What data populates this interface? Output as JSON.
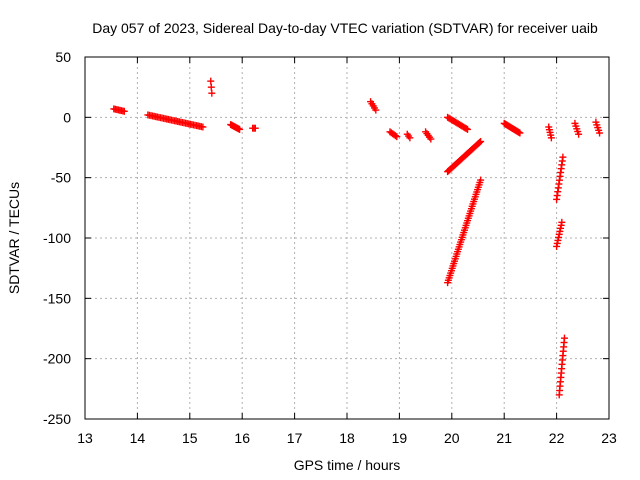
{
  "chart_data": {
    "type": "scatter",
    "title": "Day 057 of 2023, Sidereal Day-to-day VTEC variation (SDTVAR) for receiver uaib",
    "xlabel": "GPS time / hours",
    "ylabel": "SDTVAR / TECUs",
    "xlim": [
      13,
      23
    ],
    "ylim": [
      -250,
      50
    ],
    "grid": true,
    "marker": "+",
    "marker_color": "#ff0000",
    "x_ticks": [
      13,
      14,
      15,
      16,
      17,
      18,
      19,
      20,
      21,
      22,
      23
    ],
    "y_ticks": [
      50,
      0,
      -50,
      -100,
      -150,
      -200,
      -250
    ],
    "x_tick_labels": [
      "13",
      "14",
      "15",
      "16",
      "17",
      "18",
      "19",
      "20",
      "21",
      "22",
      "23"
    ],
    "y_tick_labels": [
      "50",
      "0",
      "-50",
      "-100",
      "-150",
      "-200",
      "-250"
    ],
    "segments": [
      {
        "x": [
          13.55,
          13.75
        ],
        "y": [
          7,
          5
        ],
        "n": 8
      },
      {
        "x": [
          14.2,
          15.25
        ],
        "y": [
          2,
          -8
        ],
        "n": 36
      },
      {
        "x": [
          15.4,
          15.42
        ],
        "y": [
          30,
          20
        ],
        "n": 3
      },
      {
        "x": [
          15.78,
          15.95
        ],
        "y": [
          -6,
          -10
        ],
        "n": 10
      },
      {
        "x": [
          16.2,
          16.25
        ],
        "y": [
          -9,
          -9
        ],
        "n": 3
      },
      {
        "x": [
          18.45,
          18.55
        ],
        "y": [
          13,
          6
        ],
        "n": 5
      },
      {
        "x": [
          18.82,
          18.95
        ],
        "y": [
          -12,
          -16
        ],
        "n": 6
      },
      {
        "x": [
          19.15,
          19.2
        ],
        "y": [
          -14,
          -17
        ],
        "n": 3
      },
      {
        "x": [
          19.5,
          19.6
        ],
        "y": [
          -12,
          -18
        ],
        "n": 5
      },
      {
        "x": [
          19.92,
          20.3
        ],
        "y": [
          0,
          -10
        ],
        "n": 16
      },
      {
        "x": [
          19.92,
          20.55
        ],
        "y": [
          -45,
          -20
        ],
        "n": 34
      },
      {
        "x": [
          19.92,
          20.55
        ],
        "y": [
          -137,
          -52
        ],
        "n": 44
      },
      {
        "x": [
          21.0,
          21.3
        ],
        "y": [
          -5,
          -13
        ],
        "n": 18
      },
      {
        "x": [
          21.85,
          21.9
        ],
        "y": [
          -8,
          -17
        ],
        "n": 5
      },
      {
        "x": [
          22.0,
          22.12
        ],
        "y": [
          -68,
          -33
        ],
        "n": 12
      },
      {
        "x": [
          22.0,
          22.1
        ],
        "y": [
          -107,
          -87
        ],
        "n": 9
      },
      {
        "x": [
          22.05,
          22.15
        ],
        "y": [
          -230,
          -183
        ],
        "n": 14
      },
      {
        "x": [
          22.35,
          22.42
        ],
        "y": [
          -5,
          -14
        ],
        "n": 5
      },
      {
        "x": [
          22.75,
          22.82
        ],
        "y": [
          -4,
          -13
        ],
        "n": 5
      }
    ]
  }
}
